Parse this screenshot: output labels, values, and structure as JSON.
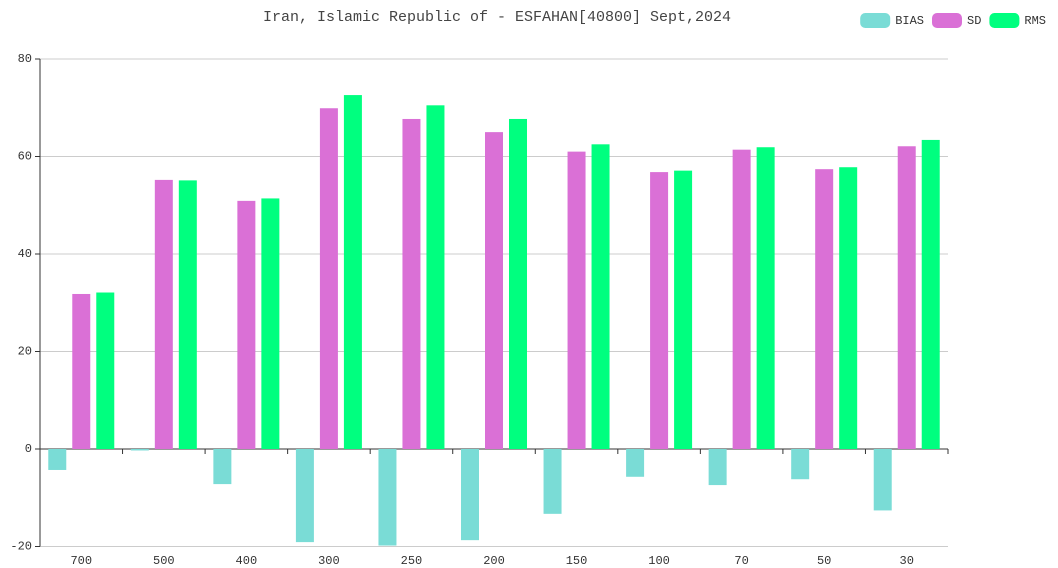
{
  "chart_data": {
    "type": "bar",
    "title": "Iran, Islamic Republic of - ESFAHAN[40800] Sept,2024",
    "categories": [
      "700",
      "500",
      "400",
      "300",
      "250",
      "200",
      "150",
      "100",
      "70",
      "50",
      "30"
    ],
    "series": [
      {
        "name": "BIAS",
        "color": "#7adcd6",
        "values": [
          -4.3,
          -0.3,
          -7.2,
          -19.1,
          -19.8,
          -18.7,
          -13.3,
          -5.7,
          -7.4,
          -6.2,
          -12.6
        ]
      },
      {
        "name": "SD",
        "color": "#da70d6",
        "values": [
          31.8,
          55.2,
          50.9,
          69.9,
          67.7,
          65.0,
          61.0,
          56.8,
          61.4,
          57.4,
          62.1
        ]
      },
      {
        "name": "RMS",
        "color": "#00ff7f",
        "values": [
          32.1,
          55.1,
          51.4,
          72.6,
          70.5,
          67.7,
          62.5,
          57.1,
          61.9,
          57.8,
          63.4
        ]
      }
    ],
    "ylim": [
      -20,
      80
    ],
    "yticks": [
      -20,
      0,
      20,
      40,
      60,
      80
    ],
    "grid": true,
    "legend": "top-right"
  }
}
